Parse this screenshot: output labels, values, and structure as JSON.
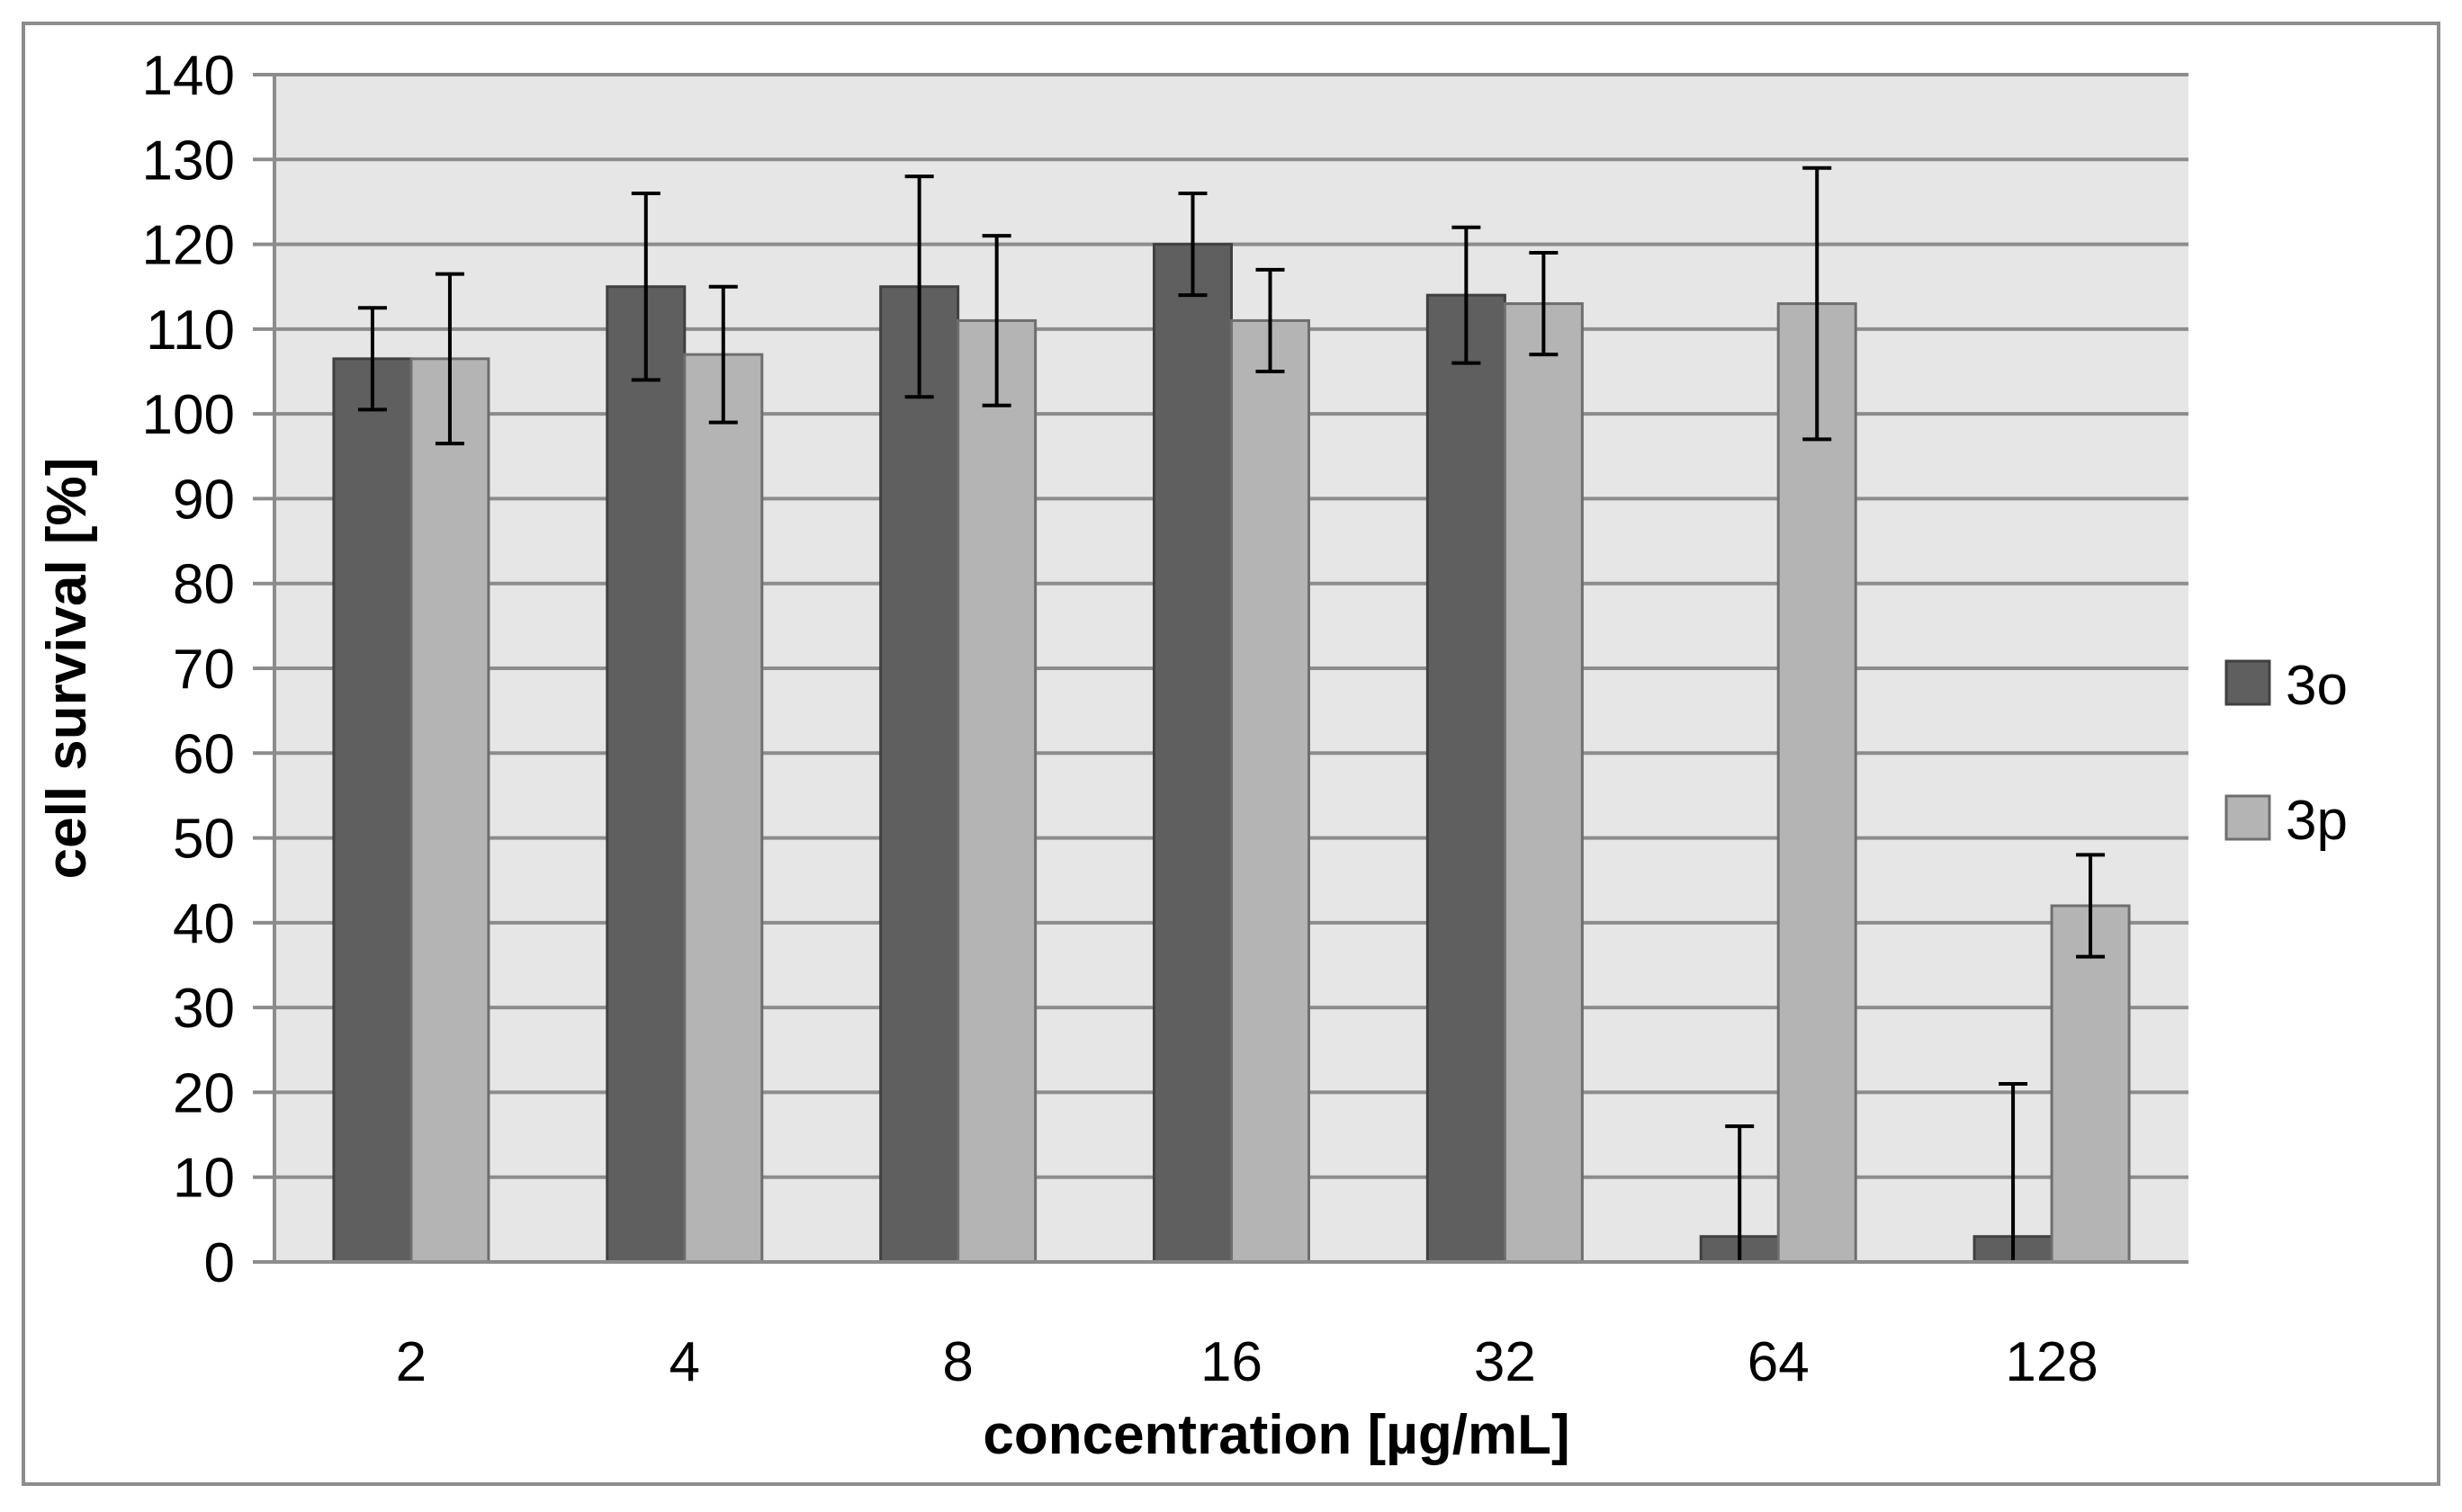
{
  "chart_data": {
    "type": "bar",
    "title": "",
    "xlabel": "concentration [µg/mL]",
    "ylabel": "cell survival [%]",
    "categories": [
      "2",
      "4",
      "8",
      "16",
      "32",
      "64",
      "128"
    ],
    "ylim": [
      0,
      140
    ],
    "yticks": [
      0,
      10,
      20,
      30,
      40,
      50,
      60,
      70,
      80,
      90,
      100,
      110,
      120,
      130,
      140
    ],
    "ytick_labels": [
      "0",
      "10",
      "20",
      "30",
      "40",
      "50",
      "60",
      "70",
      "80",
      "90",
      "100",
      "110",
      "120",
      "130",
      "140"
    ],
    "grid": "horizontal",
    "legend_position": "right",
    "series": [
      {
        "name": "3o",
        "color": "#5f5f5f",
        "values": [
          106.5,
          115,
          115,
          120,
          114,
          3,
          3
        ],
        "error_upper": [
          112.5,
          126,
          128,
          126,
          122,
          16,
          21
        ],
        "error_lower": [
          100.5,
          104,
          102,
          114,
          106,
          0,
          0
        ]
      },
      {
        "name": "3p",
        "color": "#b4b4b4",
        "values": [
          106.5,
          107,
          111,
          111,
          113,
          113,
          42
        ],
        "error_upper": [
          116.5,
          115,
          121,
          117,
          119,
          129,
          48
        ],
        "error_lower": [
          96.5,
          99,
          101,
          105,
          107,
          97,
          36
        ]
      }
    ]
  }
}
